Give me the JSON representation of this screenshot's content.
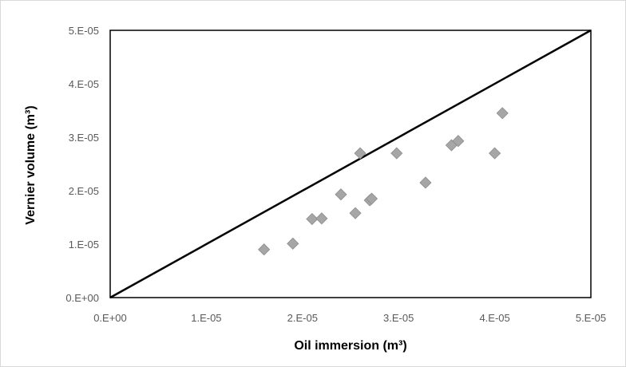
{
  "chart_data": {
    "type": "scatter",
    "title": "",
    "xlabel": "Oil immersion (m³)",
    "ylabel": "Vernier volume (m³)",
    "xlim": [
      0,
      5e-05
    ],
    "ylim": [
      0,
      5e-05
    ],
    "x_ticks": [
      "0.E+00",
      "1.E-05",
      "2.E-05",
      "3.E-05",
      "4.E-05",
      "5.E-05"
    ],
    "y_ticks": [
      "0.E+00",
      "1.E-05",
      "2.E-05",
      "3.E-05",
      "4.E-05",
      "5.E-05"
    ],
    "grid": false,
    "legend": "none",
    "series": [
      {
        "marker": "diamond",
        "color": "#a6a6a6",
        "points": [
          {
            "x": 1.6e-05,
            "y": 9e-06
          },
          {
            "x": 1.9e-05,
            "y": 1.01e-05
          },
          {
            "x": 2.1e-05,
            "y": 1.47e-05
          },
          {
            "x": 2.2e-05,
            "y": 1.48e-05
          },
          {
            "x": 2.4e-05,
            "y": 1.93e-05
          },
          {
            "x": 2.55e-05,
            "y": 1.58e-05
          },
          {
            "x": 2.6e-05,
            "y": 2.7e-05
          },
          {
            "x": 2.7e-05,
            "y": 1.82e-05
          },
          {
            "x": 2.72e-05,
            "y": 1.85e-05
          },
          {
            "x": 2.98e-05,
            "y": 2.7e-05
          },
          {
            "x": 3.28e-05,
            "y": 2.15e-05
          },
          {
            "x": 3.55e-05,
            "y": 2.85e-05
          },
          {
            "x": 3.62e-05,
            "y": 2.93e-05
          },
          {
            "x": 4e-05,
            "y": 2.7e-05
          },
          {
            "x": 4.08e-05,
            "y": 3.45e-05
          }
        ]
      }
    ],
    "reference_line": {
      "x": [
        0,
        5e-05
      ],
      "y": [
        0,
        5e-05
      ],
      "color": "#000000"
    }
  }
}
